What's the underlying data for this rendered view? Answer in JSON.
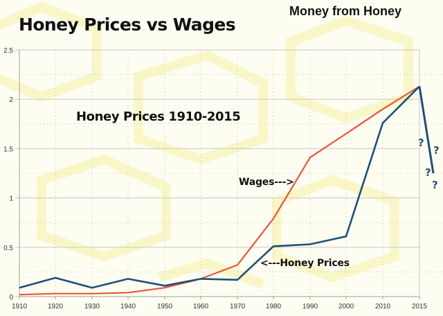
{
  "header": {
    "title": "Honey Prices vs Wages",
    "brand": "Money from Honey"
  },
  "subtitle": "Honey Prices 1910-2015",
  "annotations": {
    "wages": "Wages--->",
    "honey": "<---Honey Prices",
    "question_marks": [
      "?",
      "?",
      "?",
      "?"
    ]
  },
  "colors": {
    "honey": "#1f4e79",
    "wages": "#e8553a",
    "grid": "#c8c8c8",
    "axis_text": "#333333"
  },
  "chart_data": {
    "type": "line",
    "title": "Honey Prices vs Wages",
    "subtitle": "Honey Prices 1910-2015",
    "xlabel": "",
    "ylabel": "",
    "categories": [
      "1910",
      "1920",
      "1930",
      "1940",
      "1950",
      "1960",
      "1970",
      "1980",
      "1990",
      "2000",
      "2010",
      "2015"
    ],
    "series": [
      {
        "name": "Honey Prices",
        "color": "#1f4e79",
        "values": [
          0.09,
          0.19,
          0.09,
          0.18,
          0.11,
          0.18,
          0.17,
          0.51,
          0.53,
          0.61,
          1.76,
          2.13
        ]
      },
      {
        "name": "Wages",
        "color": "#e8553a",
        "values": [
          0.02,
          0.03,
          0.03,
          0.04,
          0.09,
          0.18,
          0.32,
          0.79,
          1.41,
          1.65,
          1.9,
          2.13
        ]
      }
    ],
    "speculative_projection": {
      "from": [
        "2015",
        2.13
      ],
      "to_value": 1.25,
      "label": "?"
    },
    "yticks": [
      "0",
      "0.5",
      "1",
      "1.5",
      "2",
      "2.5"
    ],
    "ylim": [
      0,
      2.5
    ],
    "grid": true,
    "legend": "inline annotations"
  }
}
